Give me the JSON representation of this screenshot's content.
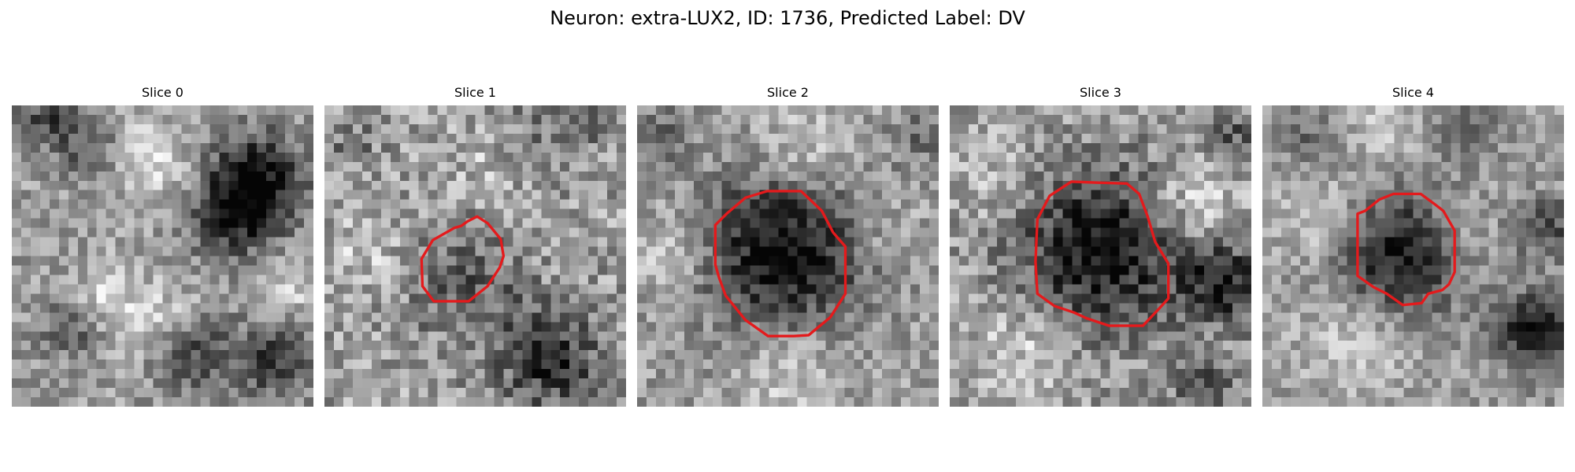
{
  "figure": {
    "title": "Neuron: extra-LUX2, ID: 1736, Predicted Label: DV"
  },
  "image": {
    "grid_size": 32,
    "colormap": "gray",
    "outline_color": "#e41a1c"
  },
  "slices": [
    {
      "title": "Slice 0",
      "has_outline": false,
      "seed": 11
    },
    {
      "title": "Slice 1",
      "has_outline": true,
      "seed": 23
    },
    {
      "title": "Slice 2",
      "has_outline": true,
      "seed": 37
    },
    {
      "title": "Slice 3",
      "has_outline": true,
      "seed": 41
    },
    {
      "title": "Slice 4",
      "has_outline": true,
      "seed": 53
    }
  ]
}
